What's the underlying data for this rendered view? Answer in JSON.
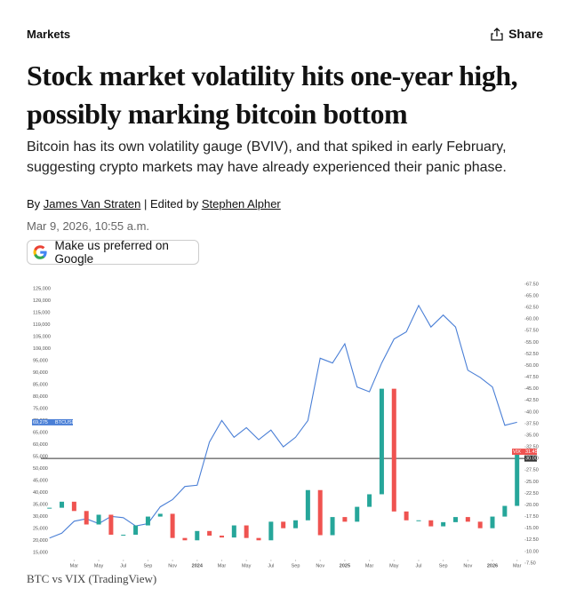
{
  "header": {
    "section": "Markets",
    "share": "Share"
  },
  "article": {
    "title": "Stock market volatility hits one-year high, possibly marking bitcoin bottom",
    "subtitle": "Bitcoin has its own volatility gauge (BVIV), and that spiked in early February, suggesting crypto markets may have already experienced their panic phase.",
    "byline": {
      "by": "By",
      "author": "James Van Straten",
      "separator": "| Edited by",
      "editor": "Stephen Alpher"
    },
    "date": "Mar 9, 2026, 10:55 a.m.",
    "button": "Make us preferred on Google",
    "caption": "BTC vs VIX (TradingView)"
  },
  "chart_data": {
    "type": "line",
    "x": [
      0,
      1,
      2,
      3,
      4,
      5,
      6,
      7,
      8,
      9,
      10,
      11,
      12,
      13,
      14,
      15,
      16,
      17,
      18,
      19,
      20,
      21,
      22,
      23,
      24,
      25,
      26,
      27,
      28,
      29,
      30,
      31,
      32,
      33,
      34,
      35,
      36,
      37,
      38
    ],
    "xlim": [
      -0.7,
      38.6
    ],
    "xticks": [
      {
        "value": 2,
        "label": "Mar"
      },
      {
        "value": 4,
        "label": "May"
      },
      {
        "value": 6,
        "label": "Jul"
      },
      {
        "value": 8,
        "label": "Sep"
      },
      {
        "value": 10,
        "label": "Nov"
      },
      {
        "value": 12,
        "label": "2024"
      },
      {
        "value": 14,
        "label": "Mar"
      },
      {
        "value": 16,
        "label": "May"
      },
      {
        "value": 18,
        "label": "Jul"
      },
      {
        "value": 20,
        "label": "Sep"
      },
      {
        "value": 22,
        "label": "Nov"
      },
      {
        "value": 24,
        "label": "2025"
      },
      {
        "value": 26,
        "label": "Mar"
      },
      {
        "value": 28,
        "label": "May"
      },
      {
        "value": 30,
        "label": "Jul"
      },
      {
        "value": 32,
        "label": "Sep"
      },
      {
        "value": 34,
        "label": "Nov"
      },
      {
        "value": 36,
        "label": "2026"
      },
      {
        "value": 38,
        "label": "Mar"
      }
    ],
    "ylim": [
      12000,
      130000
    ],
    "yticks": [
      {
        "value": 15000,
        "label": "15,000"
      },
      {
        "value": 20000,
        "label": "20,000"
      },
      {
        "value": 25000,
        "label": "25,000"
      },
      {
        "value": 30000,
        "label": "30,000"
      },
      {
        "value": 35000,
        "label": "35,000"
      },
      {
        "value": 40000,
        "label": "40,000"
      },
      {
        "value": 45000,
        "label": "45,000"
      },
      {
        "value": 50000,
        "label": "50,000"
      },
      {
        "value": 55000,
        "label": "55,000"
      },
      {
        "value": 60000,
        "label": "60,000"
      },
      {
        "value": 65000,
        "label": "65,000"
      },
      {
        "value": 70000,
        "label": "70,000"
      },
      {
        "value": 75000,
        "label": "75,000"
      },
      {
        "value": 80000,
        "label": "80,000"
      },
      {
        "value": 85000,
        "label": "85,000"
      },
      {
        "value": 90000,
        "label": "90,000"
      },
      {
        "value": 95000,
        "label": "95,000"
      },
      {
        "value": 100000,
        "label": "100,000"
      },
      {
        "value": 105000,
        "label": "105,000"
      },
      {
        "value": 110000,
        "label": "110,000"
      },
      {
        "value": 115000,
        "label": "115,000"
      },
      {
        "value": 120000,
        "label": "120,000"
      },
      {
        "value": 125000,
        "label": "125,000"
      }
    ],
    "y2lim": [
      8.25,
      69.1
    ],
    "y2ticks": [
      {
        "value": 7.5,
        "label": "7.50"
      },
      {
        "value": 10,
        "label": "10.00"
      },
      {
        "value": 12.5,
        "label": "12.50"
      },
      {
        "value": 15,
        "label": "15.00"
      },
      {
        "value": 17.5,
        "label": "17.50"
      },
      {
        "value": 20,
        "label": "20.00"
      },
      {
        "value": 22.5,
        "label": "22.50"
      },
      {
        "value": 25,
        "label": "25.00"
      },
      {
        "value": 27.5,
        "label": "27.50"
      },
      {
        "value": 30,
        "label": "30.00"
      },
      {
        "value": 32.5,
        "label": "32.50"
      },
      {
        "value": 35,
        "label": "35.00"
      },
      {
        "value": 37.5,
        "label": "37.50"
      },
      {
        "value": 40,
        "label": "40.00"
      },
      {
        "value": 42.5,
        "label": "42.50"
      },
      {
        "value": 45,
        "label": "45.00"
      },
      {
        "value": 47.5,
        "label": "47.50"
      },
      {
        "value": 50,
        "label": "50.00"
      },
      {
        "value": 52.5,
        "label": "52.50"
      },
      {
        "value": 55,
        "label": "55.00"
      },
      {
        "value": 57.5,
        "label": "57.50"
      },
      {
        "value": 60,
        "label": "60.00"
      },
      {
        "value": 62.5,
        "label": "62.50"
      },
      {
        "value": 65,
        "label": "65.00"
      },
      {
        "value": 67.5,
        "label": "67.50"
      }
    ],
    "grid": false,
    "series": [
      {
        "name": "BTCUSD",
        "color": "#4a7fd6",
        "last_label": "69,275",
        "values": [
          21000,
          23000,
          28000,
          29000,
          27000,
          30000,
          29500,
          26000,
          27000,
          34000,
          37000,
          42500,
          43000,
          61000,
          70000,
          63000,
          67000,
          62000,
          66000,
          59000,
          63000,
          70000,
          96000,
          94000,
          102000,
          84000,
          82000,
          94000,
          104000,
          107000,
          118000,
          109000,
          114000,
          109000,
          91000,
          88000,
          84000,
          68000,
          69275
        ]
      },
      {
        "name": "VIX",
        "color": "#ef5350",
        "up_color": "#26a69a",
        "axis": "y2",
        "last_label": "31.45",
        "values": [
          19.4,
          20.7,
          18.7,
          15.8,
          17.9,
          13.6,
          13.6,
          15.6,
          17.5,
          18.1,
          12.9,
          12.4,
          14.4,
          13.4,
          13.0,
          15.6,
          12.9,
          12.4,
          16.4,
          15.0,
          16.7,
          23.2,
          13.5,
          17.4,
          16.4,
          19.6,
          22.3,
          45.0,
          18.6,
          16.7,
          16.7,
          15.4,
          16.3,
          17.4,
          16.4,
          15.0,
          17.5,
          19.8,
          31.45
        ]
      }
    ],
    "reference_line": {
      "value": 30,
      "label": "30.00"
    }
  }
}
